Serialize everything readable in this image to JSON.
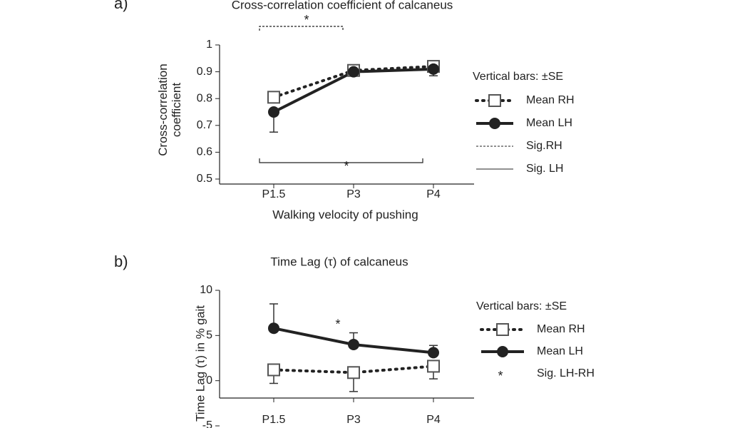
{
  "chart_data": [
    {
      "type": "line",
      "panel": "a)",
      "title": "Cross-correlation coefficient of calcaneus",
      "x_label": "Walking velocity of pushing",
      "y_label": "Cross-correlation coefficient",
      "categories": [
        "P1.5",
        "P3",
        "P4"
      ],
      "ylim": [
        0.5,
        1
      ],
      "yticks": [
        0.5,
        0.6,
        0.7,
        0.8,
        0.9,
        1
      ],
      "legend_title": "Vertical bars: ±SE",
      "series": [
        {
          "name": "Mean RH",
          "color": "#222222",
          "line": "dotted",
          "marker": "square",
          "values": [
            0.805,
            0.905,
            0.92
          ],
          "errors": [
            0.01,
            0.01,
            0.01
          ],
          "error_side": "up"
        },
        {
          "name": "Mean LH",
          "color": "#222222",
          "line": "solid",
          "marker": "circle",
          "values": [
            0.75,
            0.9,
            0.91
          ],
          "errors": [
            0.075,
            0.01,
            0.025
          ],
          "error_side": "down"
        }
      ],
      "significance": [
        {
          "name": "Sig.RH",
          "line": "dashed",
          "label": "*",
          "span": [
            "P1.5",
            "P3"
          ]
        },
        {
          "name": "Sig. LH",
          "line": "solid",
          "label": "*",
          "span": [
            "P1.5",
            "P4"
          ]
        }
      ]
    },
    {
      "type": "line",
      "panel": "b)",
      "title": "Time Lag (τ) of calcaneus",
      "y_label": "Time Lag (τ) in % gait",
      "categories": [
        "P1.5",
        "P3",
        "P4"
      ],
      "ylim": [
        -5,
        10
      ],
      "yticks": [
        -5,
        0,
        5,
        10
      ],
      "legend_title": "Vertical bars: ±SE",
      "series": [
        {
          "name": "Mean RH",
          "color": "#222222",
          "line": "dotted",
          "marker": "square",
          "values": [
            1.2,
            0.9,
            1.6
          ],
          "errors": [
            1.5,
            2.1,
            1.4
          ],
          "error_side": "down"
        },
        {
          "name": "Mean LH",
          "color": "#222222",
          "line": "solid",
          "marker": "circle",
          "values": [
            5.8,
            4.0,
            3.1
          ],
          "errors": [
            2.7,
            1.3,
            0.8
          ],
          "error_side": "up"
        }
      ],
      "significance": [
        {
          "name": "Sig. LH-RH",
          "label": "*",
          "at": "P3"
        }
      ]
    }
  ]
}
